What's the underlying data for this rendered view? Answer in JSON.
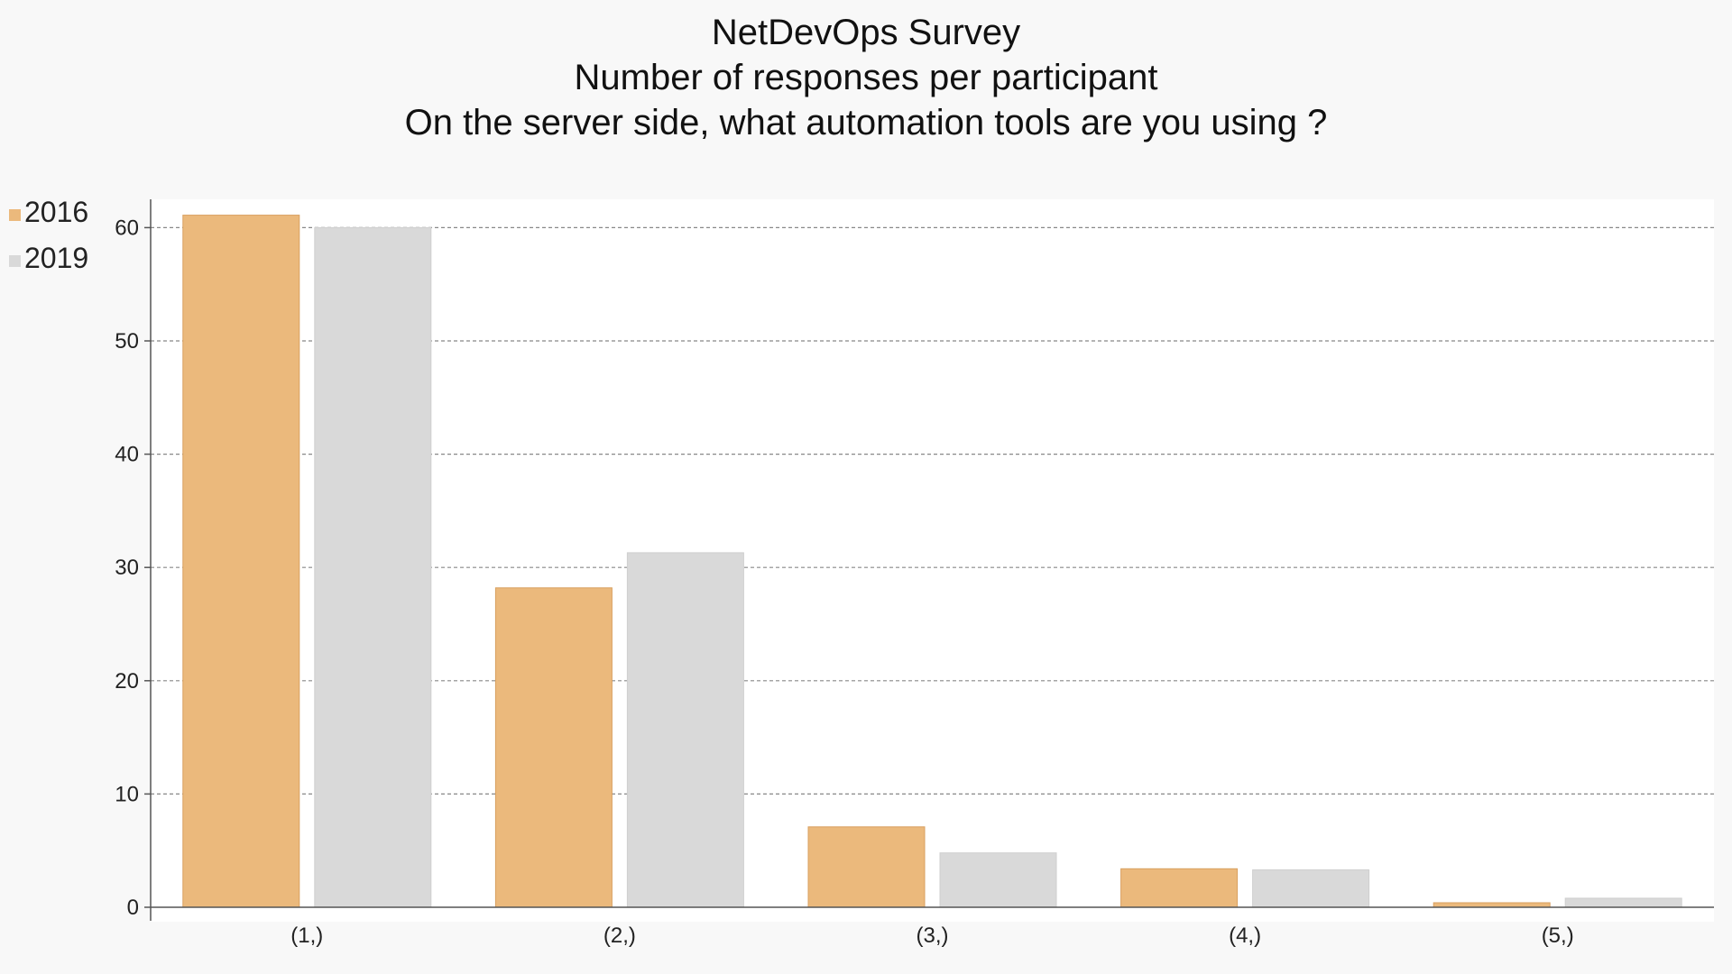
{
  "chart_data": {
    "type": "bar",
    "title_lines": [
      "NetDevOps Survey",
      "Number of responses per participant",
      "On the server side, what automation tools are you using ?"
    ],
    "categories": [
      "(1,)",
      "(2,)",
      "(3,)",
      "(4,)",
      "(5,)"
    ],
    "series": [
      {
        "name": "2016",
        "color": "#ebb97c",
        "edge": "#d9a060",
        "values": [
          61.1,
          28.2,
          7.1,
          3.4,
          0.4
        ]
      },
      {
        "name": "2019",
        "color": "#d9d9d9",
        "edge": "#cfcfcf",
        "values": [
          60.0,
          31.3,
          4.8,
          3.3,
          0.8
        ]
      }
    ],
    "ylim": [
      0,
      62.5
    ],
    "yticks": [
      0,
      10,
      20,
      30,
      40,
      50,
      60
    ],
    "grid": true,
    "legend_position": "top-left"
  }
}
